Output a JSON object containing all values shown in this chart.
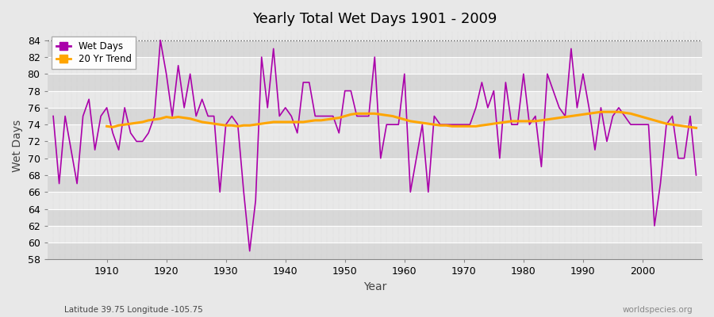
{
  "title": "Yearly Total Wet Days 1901 - 2009",
  "xlabel": "Year",
  "ylabel": "Wet Days",
  "subtitle": "Latitude 39.75 Longitude -105.75",
  "watermark": "worldspecies.org",
  "years": [
    1901,
    1902,
    1903,
    1904,
    1905,
    1906,
    1907,
    1908,
    1909,
    1910,
    1911,
    1912,
    1913,
    1914,
    1915,
    1916,
    1917,
    1918,
    1919,
    1920,
    1921,
    1922,
    1923,
    1924,
    1925,
    1926,
    1927,
    1928,
    1929,
    1930,
    1931,
    1932,
    1933,
    1934,
    1935,
    1936,
    1937,
    1938,
    1939,
    1940,
    1941,
    1942,
    1943,
    1944,
    1945,
    1946,
    1947,
    1948,
    1949,
    1950,
    1951,
    1952,
    1953,
    1954,
    1955,
    1956,
    1957,
    1958,
    1959,
    1960,
    1961,
    1962,
    1963,
    1964,
    1965,
    1966,
    1967,
    1968,
    1969,
    1970,
    1971,
    1972,
    1973,
    1974,
    1975,
    1976,
    1977,
    1978,
    1979,
    1980,
    1981,
    1982,
    1983,
    1984,
    1985,
    1986,
    1987,
    1988,
    1989,
    1990,
    1991,
    1992,
    1993,
    1994,
    1995,
    1996,
    1997,
    1998,
    1999,
    2000,
    2001,
    2002,
    2003,
    2004,
    2005,
    2006,
    2007,
    2008,
    2009
  ],
  "wet_days": [
    75,
    67,
    75,
    71,
    67,
    75,
    77,
    71,
    75,
    76,
    73,
    71,
    76,
    73,
    72,
    72,
    73,
    75,
    84,
    80,
    75,
    81,
    76,
    80,
    75,
    77,
    75,
    75,
    66,
    74,
    75,
    74,
    66,
    59,
    65,
    82,
    76,
    83,
    75,
    76,
    75,
    73,
    79,
    79,
    75,
    75,
    75,
    75,
    73,
    78,
    78,
    75,
    75,
    75,
    82,
    70,
    74,
    74,
    74,
    80,
    66,
    70,
    74,
    66,
    75,
    74,
    74,
    74,
    74,
    74,
    74,
    76,
    79,
    76,
    78,
    70,
    79,
    74,
    74,
    80,
    74,
    75,
    69,
    80,
    78,
    76,
    75,
    83,
    76,
    80,
    76,
    71,
    76,
    72,
    75,
    76,
    75,
    74,
    74,
    74,
    74,
    62,
    67,
    74,
    75,
    70,
    70,
    75,
    68
  ],
  "trend_years": [
    1910,
    1911,
    1912,
    1913,
    1914,
    1915,
    1916,
    1917,
    1918,
    1919,
    1920,
    1921,
    1922,
    1923,
    1924,
    1925,
    1926,
    1927,
    1928,
    1929,
    1930,
    1931,
    1932,
    1933,
    1934,
    1935,
    1936,
    1937,
    1938,
    1939,
    1940,
    1941,
    1942,
    1943,
    1944,
    1945,
    1946,
    1947,
    1948,
    1949,
    1950,
    1951,
    1952,
    1953,
    1954,
    1955,
    1956,
    1957,
    1958,
    1959,
    1960,
    1961,
    1962,
    1963,
    1964,
    1965,
    1966,
    1967,
    1968,
    1969,
    1970,
    1971,
    1972,
    1973,
    1974,
    1975,
    1976,
    1977,
    1978,
    1979,
    1980,
    1981,
    1982,
    1983,
    1984,
    1985,
    1986,
    1987,
    1988,
    1989,
    1990,
    1991,
    1992,
    1993,
    1994,
    1995,
    1996,
    1997,
    1998,
    1999,
    2000,
    2001,
    2002,
    2003,
    2004,
    2005,
    2006,
    2007,
    2008,
    2009
  ],
  "trend_values": [
    73.8,
    73.7,
    73.9,
    74.0,
    74.1,
    74.2,
    74.3,
    74.5,
    74.6,
    74.7,
    74.9,
    74.8,
    74.9,
    74.8,
    74.7,
    74.5,
    74.3,
    74.2,
    74.1,
    74.0,
    73.9,
    73.9,
    73.8,
    73.9,
    73.9,
    74.0,
    74.1,
    74.2,
    74.3,
    74.3,
    74.3,
    74.3,
    74.3,
    74.3,
    74.4,
    74.5,
    74.5,
    74.6,
    74.7,
    74.8,
    75.0,
    75.2,
    75.3,
    75.3,
    75.3,
    75.3,
    75.2,
    75.1,
    75.0,
    74.8,
    74.6,
    74.4,
    74.3,
    74.2,
    74.1,
    74.0,
    73.9,
    73.9,
    73.8,
    73.8,
    73.8,
    73.8,
    73.8,
    73.9,
    74.0,
    74.1,
    74.2,
    74.3,
    74.4,
    74.4,
    74.4,
    74.4,
    74.4,
    74.5,
    74.6,
    74.7,
    74.8,
    74.9,
    75.0,
    75.1,
    75.2,
    75.3,
    75.4,
    75.5,
    75.5,
    75.5,
    75.5,
    75.4,
    75.3,
    75.1,
    74.9,
    74.7,
    74.5,
    74.3,
    74.1,
    74.0,
    73.9,
    73.8,
    73.7,
    73.6
  ],
  "wet_days_color": "#AA00AA",
  "trend_color": "#FFA500",
  "bg_color": "#E8E8E8",
  "stripe_light": "#E8E8E8",
  "stripe_dark": "#D8D8D8",
  "grid_color": "#FFFFFF",
  "ylim": [
    58,
    85
  ],
  "yticks": [
    58,
    60,
    62,
    64,
    66,
    68,
    70,
    72,
    74,
    76,
    78,
    80,
    82,
    84
  ],
  "xlim_min": 1901,
  "xlim_max": 2009,
  "xticks": [
    1910,
    1920,
    1930,
    1940,
    1950,
    1960,
    1970,
    1980,
    1990,
    2000
  ]
}
